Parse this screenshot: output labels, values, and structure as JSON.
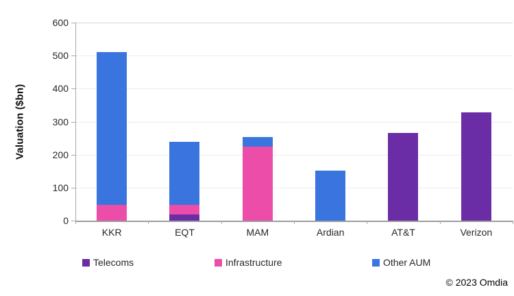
{
  "chart_data": {
    "type": "bar",
    "stacked": true,
    "title": "",
    "xlabel": "",
    "ylabel": "Valuation ($bn)",
    "ylim": [
      0,
      600
    ],
    "y_ticks": [
      0,
      100,
      200,
      300,
      400,
      500,
      600
    ],
    "grid": true,
    "legend_position": "bottom",
    "categories": [
      "KKR",
      "EQT",
      "MAM",
      "Ardian",
      "AT&T",
      "Verizon"
    ],
    "series": [
      {
        "name": "Telecoms",
        "color": "#6B2DA6",
        "values": [
          0,
          18,
          0,
          0,
          265,
          328
        ]
      },
      {
        "name": "Infrastructure",
        "color": "#EC4DA9",
        "values": [
          47,
          30,
          225,
          0,
          0,
          0
        ]
      },
      {
        "name": "Other AUM",
        "color": "#3A74DF",
        "values": [
          464,
          190,
          28,
          151,
          0,
          0
        ]
      }
    ],
    "totals": [
      511,
      238,
      253,
      151,
      265,
      328
    ]
  },
  "footer": {
    "copyright": "© 2023 Omdia"
  }
}
